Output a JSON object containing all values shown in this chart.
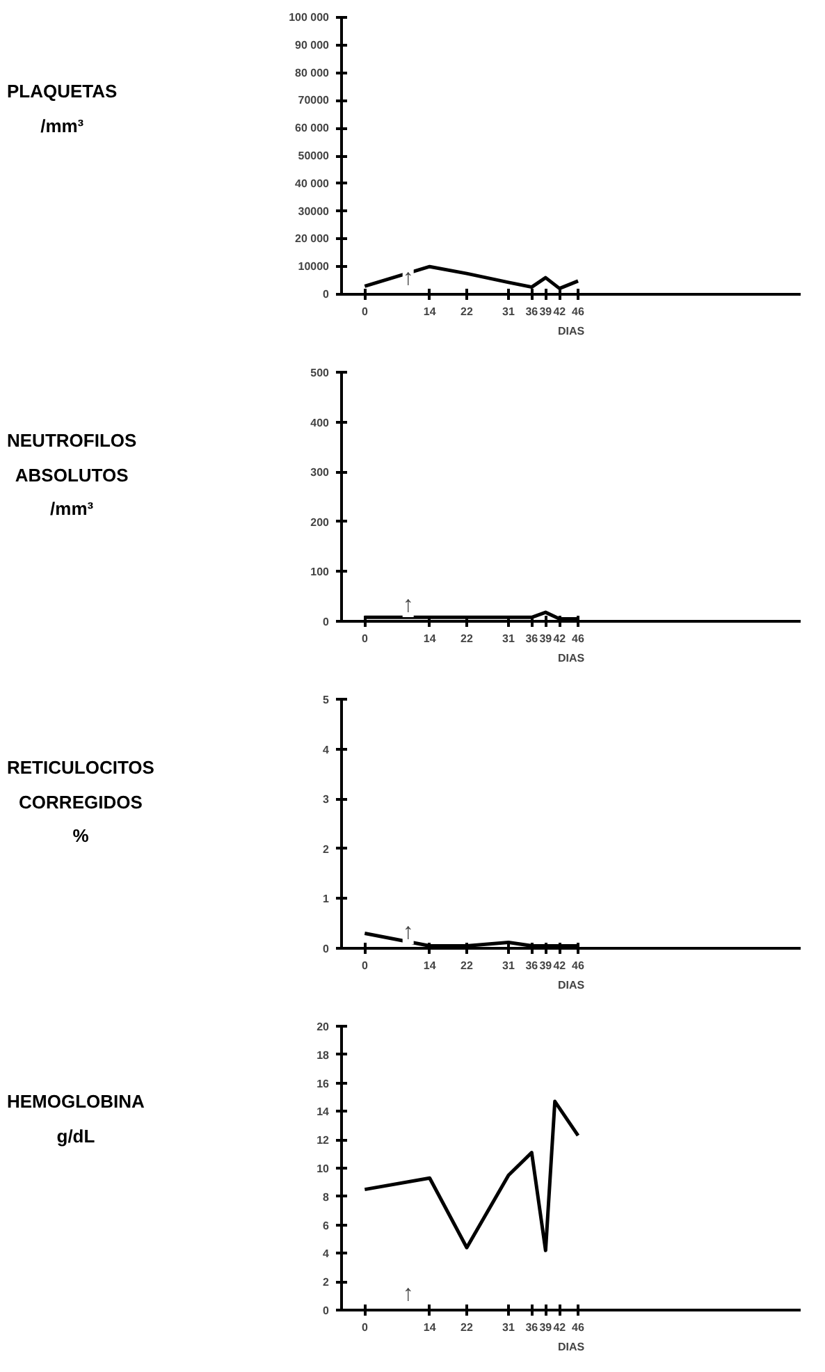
{
  "chart_data": [
    {
      "type": "line",
      "ylabel": "PLAQUETAS\n/mm³",
      "xlabel": "DIAS",
      "x": [
        0,
        14,
        22,
        31,
        36,
        39,
        42,
        46
      ],
      "series": [
        {
          "color": "#000000",
          "values": [
            2900,
            10000,
            7500,
            4300,
            2600,
            6000,
            2100,
            4800
          ]
        }
      ],
      "xlim": [
        -5,
        94
      ],
      "xticks": [
        0,
        14,
        22,
        31,
        36,
        39,
        42,
        46
      ],
      "ylim": [
        0,
        100000
      ],
      "yticks": [
        0,
        10000,
        {
          "value": 20000,
          "label": "20 000"
        },
        30000,
        {
          "value": 40000,
          "label": "40 000"
        },
        50000,
        {
          "value": 60000,
          "label": "60 000"
        },
        70000,
        {
          "value": 80000,
          "label": "80 000"
        },
        {
          "value": 90000,
          "label": "90 000"
        },
        {
          "value": 100000,
          "label": "100 000"
        }
      ],
      "annotations": [
        "↑"
      ],
      "grid": false
    },
    {
      "type": "line",
      "ylabel": "NEUTROFILOS\nABSOLUTOS\n/mm³",
      "xlabel": "DIAS",
      "x": [
        0,
        14,
        22,
        31,
        36,
        39,
        42,
        46
      ],
      "series": [
        {
          "color": "#000000",
          "values": [
            8,
            8,
            8,
            8,
            8,
            18,
            5,
            5
          ]
        }
      ],
      "xlim": [
        -5,
        94
      ],
      "xticks": [
        0,
        14,
        22,
        31,
        36,
        39,
        42,
        46
      ],
      "ylim": [
        0,
        500
      ],
      "yticks": [
        0,
        100,
        200,
        300,
        400,
        500
      ],
      "annotations": [
        "↑"
      ],
      "grid": false
    },
    {
      "type": "line",
      "ylabel": "RETICULOCITOS\nCORREGIDOS\n%",
      "xlabel": "DIAS",
      "x": [
        0,
        14,
        22,
        31,
        36,
        39,
        42,
        46
      ],
      "series": [
        {
          "color": "#000000",
          "values": [
            0.3,
            0.05,
            0.05,
            0.12,
            0.05,
            0.05,
            0.05,
            0.05
          ]
        }
      ],
      "xlim": [
        -5,
        94
      ],
      "xticks": [
        0,
        14,
        22,
        31,
        36,
        39,
        42,
        46
      ],
      "ylim": [
        0,
        5
      ],
      "yticks": [
        0,
        1,
        2,
        3,
        4,
        5
      ],
      "annotations": [
        "↑"
      ],
      "grid": false
    },
    {
      "type": "line",
      "ylabel": "HEMOGLOBINA\ng/dL",
      "xlabel": "DIAS",
      "x": [
        0,
        14,
        22,
        31,
        36,
        39,
        41,
        46
      ],
      "series": [
        {
          "color": "#000000",
          "values": [
            8.5,
            9.3,
            4.4,
            9.5,
            11.1,
            4.2,
            14.7,
            12.3
          ]
        }
      ],
      "xlim": [
        -5,
        94
      ],
      "xticks": [
        0,
        14,
        22,
        31,
        36,
        39,
        42,
        46
      ],
      "ylim": [
        0,
        20
      ],
      "yticks": [
        0,
        2,
        4,
        6,
        8,
        10,
        12,
        14,
        16,
        18,
        20
      ],
      "annotations": [
        "↑"
      ],
      "grid": false
    }
  ]
}
